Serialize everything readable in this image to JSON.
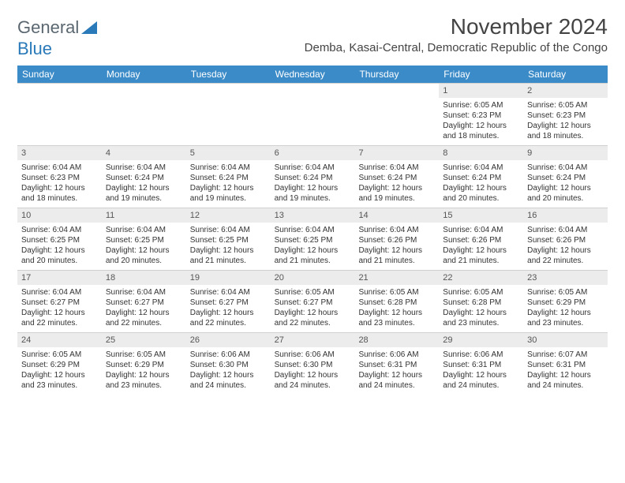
{
  "logo": {
    "text1": "General",
    "text2": "Blue"
  },
  "title": "November 2024",
  "location": "Demba, Kasai-Central, Democratic Republic of the Congo",
  "colors": {
    "header_bg": "#3b8bc8",
    "header_text": "#ffffff",
    "daynum_bg": "#ececec",
    "body_text": "#333333",
    "logo_gray": "#5a6770",
    "logo_blue": "#2a7ab9"
  },
  "day_headers": [
    "Sunday",
    "Monday",
    "Tuesday",
    "Wednesday",
    "Thursday",
    "Friday",
    "Saturday"
  ],
  "weeks": [
    [
      {
        "empty": true
      },
      {
        "empty": true
      },
      {
        "empty": true
      },
      {
        "empty": true
      },
      {
        "empty": true
      },
      {
        "num": "1",
        "sunrise": "Sunrise: 6:05 AM",
        "sunset": "Sunset: 6:23 PM",
        "daylight1": "Daylight: 12 hours",
        "daylight2": "and 18 minutes."
      },
      {
        "num": "2",
        "sunrise": "Sunrise: 6:05 AM",
        "sunset": "Sunset: 6:23 PM",
        "daylight1": "Daylight: 12 hours",
        "daylight2": "and 18 minutes."
      }
    ],
    [
      {
        "num": "3",
        "sunrise": "Sunrise: 6:04 AM",
        "sunset": "Sunset: 6:23 PM",
        "daylight1": "Daylight: 12 hours",
        "daylight2": "and 18 minutes."
      },
      {
        "num": "4",
        "sunrise": "Sunrise: 6:04 AM",
        "sunset": "Sunset: 6:24 PM",
        "daylight1": "Daylight: 12 hours",
        "daylight2": "and 19 minutes."
      },
      {
        "num": "5",
        "sunrise": "Sunrise: 6:04 AM",
        "sunset": "Sunset: 6:24 PM",
        "daylight1": "Daylight: 12 hours",
        "daylight2": "and 19 minutes."
      },
      {
        "num": "6",
        "sunrise": "Sunrise: 6:04 AM",
        "sunset": "Sunset: 6:24 PM",
        "daylight1": "Daylight: 12 hours",
        "daylight2": "and 19 minutes."
      },
      {
        "num": "7",
        "sunrise": "Sunrise: 6:04 AM",
        "sunset": "Sunset: 6:24 PM",
        "daylight1": "Daylight: 12 hours",
        "daylight2": "and 19 minutes."
      },
      {
        "num": "8",
        "sunrise": "Sunrise: 6:04 AM",
        "sunset": "Sunset: 6:24 PM",
        "daylight1": "Daylight: 12 hours",
        "daylight2": "and 20 minutes."
      },
      {
        "num": "9",
        "sunrise": "Sunrise: 6:04 AM",
        "sunset": "Sunset: 6:24 PM",
        "daylight1": "Daylight: 12 hours",
        "daylight2": "and 20 minutes."
      }
    ],
    [
      {
        "num": "10",
        "sunrise": "Sunrise: 6:04 AM",
        "sunset": "Sunset: 6:25 PM",
        "daylight1": "Daylight: 12 hours",
        "daylight2": "and 20 minutes."
      },
      {
        "num": "11",
        "sunrise": "Sunrise: 6:04 AM",
        "sunset": "Sunset: 6:25 PM",
        "daylight1": "Daylight: 12 hours",
        "daylight2": "and 20 minutes."
      },
      {
        "num": "12",
        "sunrise": "Sunrise: 6:04 AM",
        "sunset": "Sunset: 6:25 PM",
        "daylight1": "Daylight: 12 hours",
        "daylight2": "and 21 minutes."
      },
      {
        "num": "13",
        "sunrise": "Sunrise: 6:04 AM",
        "sunset": "Sunset: 6:25 PM",
        "daylight1": "Daylight: 12 hours",
        "daylight2": "and 21 minutes."
      },
      {
        "num": "14",
        "sunrise": "Sunrise: 6:04 AM",
        "sunset": "Sunset: 6:26 PM",
        "daylight1": "Daylight: 12 hours",
        "daylight2": "and 21 minutes."
      },
      {
        "num": "15",
        "sunrise": "Sunrise: 6:04 AM",
        "sunset": "Sunset: 6:26 PM",
        "daylight1": "Daylight: 12 hours",
        "daylight2": "and 21 minutes."
      },
      {
        "num": "16",
        "sunrise": "Sunrise: 6:04 AM",
        "sunset": "Sunset: 6:26 PM",
        "daylight1": "Daylight: 12 hours",
        "daylight2": "and 22 minutes."
      }
    ],
    [
      {
        "num": "17",
        "sunrise": "Sunrise: 6:04 AM",
        "sunset": "Sunset: 6:27 PM",
        "daylight1": "Daylight: 12 hours",
        "daylight2": "and 22 minutes."
      },
      {
        "num": "18",
        "sunrise": "Sunrise: 6:04 AM",
        "sunset": "Sunset: 6:27 PM",
        "daylight1": "Daylight: 12 hours",
        "daylight2": "and 22 minutes."
      },
      {
        "num": "19",
        "sunrise": "Sunrise: 6:04 AM",
        "sunset": "Sunset: 6:27 PM",
        "daylight1": "Daylight: 12 hours",
        "daylight2": "and 22 minutes."
      },
      {
        "num": "20",
        "sunrise": "Sunrise: 6:05 AM",
        "sunset": "Sunset: 6:27 PM",
        "daylight1": "Daylight: 12 hours",
        "daylight2": "and 22 minutes."
      },
      {
        "num": "21",
        "sunrise": "Sunrise: 6:05 AM",
        "sunset": "Sunset: 6:28 PM",
        "daylight1": "Daylight: 12 hours",
        "daylight2": "and 23 minutes."
      },
      {
        "num": "22",
        "sunrise": "Sunrise: 6:05 AM",
        "sunset": "Sunset: 6:28 PM",
        "daylight1": "Daylight: 12 hours",
        "daylight2": "and 23 minutes."
      },
      {
        "num": "23",
        "sunrise": "Sunrise: 6:05 AM",
        "sunset": "Sunset: 6:29 PM",
        "daylight1": "Daylight: 12 hours",
        "daylight2": "and 23 minutes."
      }
    ],
    [
      {
        "num": "24",
        "sunrise": "Sunrise: 6:05 AM",
        "sunset": "Sunset: 6:29 PM",
        "daylight1": "Daylight: 12 hours",
        "daylight2": "and 23 minutes."
      },
      {
        "num": "25",
        "sunrise": "Sunrise: 6:05 AM",
        "sunset": "Sunset: 6:29 PM",
        "daylight1": "Daylight: 12 hours",
        "daylight2": "and 23 minutes."
      },
      {
        "num": "26",
        "sunrise": "Sunrise: 6:06 AM",
        "sunset": "Sunset: 6:30 PM",
        "daylight1": "Daylight: 12 hours",
        "daylight2": "and 24 minutes."
      },
      {
        "num": "27",
        "sunrise": "Sunrise: 6:06 AM",
        "sunset": "Sunset: 6:30 PM",
        "daylight1": "Daylight: 12 hours",
        "daylight2": "and 24 minutes."
      },
      {
        "num": "28",
        "sunrise": "Sunrise: 6:06 AM",
        "sunset": "Sunset: 6:31 PM",
        "daylight1": "Daylight: 12 hours",
        "daylight2": "and 24 minutes."
      },
      {
        "num": "29",
        "sunrise": "Sunrise: 6:06 AM",
        "sunset": "Sunset: 6:31 PM",
        "daylight1": "Daylight: 12 hours",
        "daylight2": "and 24 minutes."
      },
      {
        "num": "30",
        "sunrise": "Sunrise: 6:07 AM",
        "sunset": "Sunset: 6:31 PM",
        "daylight1": "Daylight: 12 hours",
        "daylight2": "and 24 minutes."
      }
    ]
  ]
}
